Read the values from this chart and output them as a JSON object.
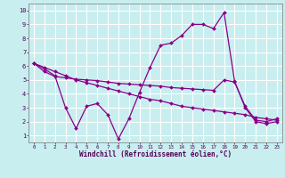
{
  "background_color": "#c8eef0",
  "grid_color": "#ffffff",
  "line_color": "#880088",
  "xlabel": "Windchill (Refroidissement éolien,°C)",
  "xlim": [
    -0.5,
    23.5
  ],
  "ylim": [
    0.5,
    10.5
  ],
  "yticks": [
    1,
    2,
    3,
    4,
    5,
    6,
    7,
    8,
    9,
    10
  ],
  "xticks": [
    0,
    1,
    2,
    3,
    4,
    5,
    6,
    7,
    8,
    9,
    10,
    11,
    12,
    13,
    14,
    15,
    16,
    17,
    18,
    19,
    20,
    21,
    22,
    23
  ],
  "line1_x": [
    0,
    1,
    2,
    3,
    4,
    5,
    6,
    7,
    8,
    9,
    10,
    11,
    12,
    13,
    14,
    15,
    16,
    17,
    18,
    19,
    20,
    21,
    22,
    23
  ],
  "line1_y": [
    6.2,
    5.8,
    5.3,
    3.0,
    1.5,
    3.1,
    3.3,
    2.5,
    0.75,
    2.2,
    4.1,
    5.9,
    7.5,
    7.65,
    8.2,
    9.0,
    9.0,
    8.7,
    9.85,
    4.9,
    3.0,
    2.0,
    1.85,
    2.0
  ],
  "line2_x": [
    0,
    1,
    2,
    3,
    4,
    5,
    6,
    7,
    8,
    9,
    10,
    11,
    12,
    13,
    14,
    15,
    16,
    17,
    18,
    19,
    20,
    21,
    22,
    23
  ],
  "line2_y": [
    6.2,
    5.6,
    5.25,
    5.15,
    5.05,
    5.0,
    4.95,
    4.85,
    4.75,
    4.7,
    4.65,
    4.6,
    4.55,
    4.45,
    4.4,
    4.35,
    4.3,
    4.25,
    5.0,
    4.85,
    3.1,
    2.1,
    2.0,
    2.2
  ],
  "line3_x": [
    0,
    1,
    2,
    3,
    4,
    5,
    6,
    7,
    8,
    9,
    10,
    11,
    12,
    13,
    14,
    15,
    16,
    17,
    18,
    19,
    20,
    21,
    22,
    23
  ],
  "line3_y": [
    6.2,
    5.9,
    5.6,
    5.3,
    5.0,
    4.8,
    4.6,
    4.4,
    4.2,
    4.0,
    3.8,
    3.6,
    3.5,
    3.3,
    3.1,
    3.0,
    2.9,
    2.8,
    2.7,
    2.6,
    2.5,
    2.3,
    2.2,
    2.1
  ]
}
